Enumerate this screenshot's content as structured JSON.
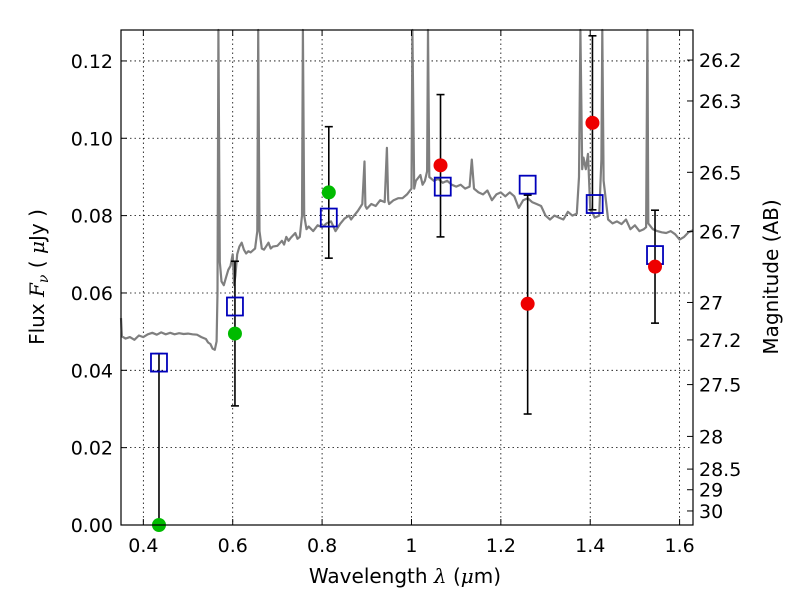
{
  "chart_data": {
    "type": "scatter",
    "xlabel": {
      "prefix": "Wavelength ",
      "symbol": "λ",
      "unit_open": " (",
      "unit_sym": "μ",
      "unit_rest": "m)"
    },
    "ylabel": {
      "prefix": "Flux ",
      "symbol": "F",
      "subscript": "ν",
      "unit_open": " ( ",
      "unit_sym": "μ",
      "unit_rest": "Jy )"
    },
    "y2label": "Magnitude (AB)",
    "xlim": [
      0.35,
      1.63
    ],
    "ylim": [
      0.0,
      0.128
    ],
    "grid": true,
    "x_ticks": [
      {
        "v": 0.4,
        "label": "0.4"
      },
      {
        "v": 0.6,
        "label": "0.6"
      },
      {
        "v": 0.8,
        "label": "0.8"
      },
      {
        "v": 1.0,
        "label": "1"
      },
      {
        "v": 1.2,
        "label": "1.2"
      },
      {
        "v": 1.4,
        "label": "1.4"
      },
      {
        "v": 1.6,
        "label": "1.6"
      }
    ],
    "y_ticks": [
      {
        "v": 0.0,
        "label": "0.00"
      },
      {
        "v": 0.02,
        "label": "0.02"
      },
      {
        "v": 0.04,
        "label": "0.04"
      },
      {
        "v": 0.06,
        "label": "0.06"
      },
      {
        "v": 0.08,
        "label": "0.08"
      },
      {
        "v": 0.1,
        "label": "0.10"
      },
      {
        "v": 0.12,
        "label": "0.12"
      }
    ],
    "mag_ticks": [
      {
        "mag": 26.2,
        "label": "26.2"
      },
      {
        "mag": 26.3,
        "label": "26.3"
      },
      {
        "mag": 26.5,
        "label": "26.5"
      },
      {
        "mag": 26.7,
        "label": "26.7"
      },
      {
        "mag": 27.0,
        "label": "27"
      },
      {
        "mag": 27.2,
        "label": "27.2"
      },
      {
        "mag": 27.5,
        "label": "27.5"
      },
      {
        "mag": 28.0,
        "label": "28"
      },
      {
        "mag": 28.5,
        "label": "28.5"
      },
      {
        "mag": 29.0,
        "label": "29"
      },
      {
        "mag": 30.0,
        "label": "30"
      }
    ],
    "series": [
      {
        "role": "model-spectrum",
        "color": "#7f7f7f",
        "points": [
          [
            0.35,
            0.0535
          ],
          [
            0.352,
            0.0488
          ],
          [
            0.36,
            0.0482
          ],
          [
            0.37,
            0.0486
          ],
          [
            0.38,
            0.0479
          ],
          [
            0.39,
            0.049
          ],
          [
            0.4,
            0.0486
          ],
          [
            0.41,
            0.0493
          ],
          [
            0.42,
            0.0497
          ],
          [
            0.43,
            0.0492
          ],
          [
            0.44,
            0.0498
          ],
          [
            0.45,
            0.0493
          ],
          [
            0.46,
            0.0497
          ],
          [
            0.47,
            0.0493
          ],
          [
            0.48,
            0.0496
          ],
          [
            0.49,
            0.0494
          ],
          [
            0.5,
            0.0495
          ],
          [
            0.51,
            0.0493
          ],
          [
            0.52,
            0.0492
          ],
          [
            0.53,
            0.0486
          ],
          [
            0.54,
            0.0481
          ],
          [
            0.545,
            0.0472
          ],
          [
            0.55,
            0.0468
          ],
          [
            0.555,
            0.0456
          ],
          [
            0.56,
            0.0453
          ],
          [
            0.564,
            0.0475
          ],
          [
            0.566,
            0.06
          ],
          [
            0.568,
            0.129
          ],
          [
            0.571,
            0.068
          ],
          [
            0.575,
            0.063
          ],
          [
            0.58,
            0.062
          ],
          [
            0.585,
            0.064
          ],
          [
            0.59,
            0.066
          ],
          [
            0.595,
            0.067
          ],
          [
            0.6,
            0.07
          ],
          [
            0.603,
            0.062
          ],
          [
            0.606,
            0.0645
          ],
          [
            0.61,
            0.07
          ],
          [
            0.615,
            0.072
          ],
          [
            0.62,
            0.073
          ],
          [
            0.625,
            0.0712
          ],
          [
            0.63,
            0.0702
          ],
          [
            0.635,
            0.0708
          ],
          [
            0.64,
            0.0705
          ],
          [
            0.65,
            0.0715
          ],
          [
            0.655,
            0.076
          ],
          [
            0.657,
            0.129
          ],
          [
            0.66,
            0.076
          ],
          [
            0.665,
            0.0715
          ],
          [
            0.67,
            0.0712
          ],
          [
            0.68,
            0.073
          ],
          [
            0.685,
            0.0715
          ],
          [
            0.69,
            0.072
          ],
          [
            0.7,
            0.0722
          ],
          [
            0.71,
            0.0735
          ],
          [
            0.715,
            0.0725
          ],
          [
            0.72,
            0.0745
          ],
          [
            0.725,
            0.0735
          ],
          [
            0.73,
            0.0743
          ],
          [
            0.74,
            0.0755
          ],
          [
            0.745,
            0.074
          ],
          [
            0.75,
            0.0745
          ],
          [
            0.755,
            0.08
          ],
          [
            0.757,
            0.129
          ],
          [
            0.76,
            0.08
          ],
          [
            0.765,
            0.0765
          ],
          [
            0.77,
            0.0772
          ],
          [
            0.78,
            0.076
          ],
          [
            0.79,
            0.0775
          ],
          [
            0.8,
            0.077
          ],
          [
            0.81,
            0.078
          ],
          [
            0.82,
            0.0785
          ],
          [
            0.83,
            0.076
          ],
          [
            0.84,
            0.0778
          ],
          [
            0.85,
            0.0792
          ],
          [
            0.86,
            0.08
          ],
          [
            0.865,
            0.079
          ],
          [
            0.87,
            0.0798
          ],
          [
            0.88,
            0.0812
          ],
          [
            0.89,
            0.083
          ],
          [
            0.895,
            0.094
          ],
          [
            0.897,
            0.0825
          ],
          [
            0.9,
            0.0818
          ],
          [
            0.91,
            0.083
          ],
          [
            0.92,
            0.0825
          ],
          [
            0.93,
            0.084
          ],
          [
            0.94,
            0.0835
          ],
          [
            0.945,
            0.0975
          ],
          [
            0.948,
            0.084
          ],
          [
            0.95,
            0.083
          ],
          [
            0.96,
            0.084
          ],
          [
            0.97,
            0.0845
          ],
          [
            0.98,
            0.0845
          ],
          [
            0.99,
            0.0855
          ],
          [
            1.0,
            0.087
          ],
          [
            1.002,
            0.129
          ],
          [
            1.006,
            0.087
          ],
          [
            1.01,
            0.089
          ],
          [
            1.02,
            0.0905
          ],
          [
            1.025,
            0.088
          ],
          [
            1.03,
            0.089
          ],
          [
            1.035,
            0.0915
          ],
          [
            1.037,
            0.129
          ],
          [
            1.04,
            0.09
          ],
          [
            1.05,
            0.089
          ],
          [
            1.06,
            0.0895
          ],
          [
            1.07,
            0.0885
          ],
          [
            1.08,
            0.089
          ],
          [
            1.09,
            0.088
          ],
          [
            1.1,
            0.0875
          ],
          [
            1.11,
            0.088
          ],
          [
            1.12,
            0.087
          ],
          [
            1.13,
            0.0875
          ],
          [
            1.135,
            0.0945
          ],
          [
            1.14,
            0.087
          ],
          [
            1.15,
            0.086
          ],
          [
            1.16,
            0.0855
          ],
          [
            1.17,
            0.0865
          ],
          [
            1.18,
            0.084
          ],
          [
            1.19,
            0.0855
          ],
          [
            1.2,
            0.086
          ],
          [
            1.21,
            0.085
          ],
          [
            1.22,
            0.086
          ],
          [
            1.23,
            0.085
          ],
          [
            1.24,
            0.082
          ],
          [
            1.25,
            0.084
          ],
          [
            1.26,
            0.0845
          ],
          [
            1.27,
            0.0835
          ],
          [
            1.28,
            0.083
          ],
          [
            1.29,
            0.0825
          ],
          [
            1.3,
            0.08
          ],
          [
            1.31,
            0.079
          ],
          [
            1.32,
            0.08
          ],
          [
            1.33,
            0.0795
          ],
          [
            1.34,
            0.079
          ],
          [
            1.35,
            0.081
          ],
          [
            1.36,
            0.08
          ],
          [
            1.37,
            0.0805
          ],
          [
            1.375,
            0.09
          ],
          [
            1.378,
            0.129
          ],
          [
            1.382,
            0.092
          ],
          [
            1.385,
            0.095
          ],
          [
            1.39,
            0.092
          ],
          [
            1.395,
            0.096
          ],
          [
            1.4,
            0.082
          ],
          [
            1.41,
            0.0795
          ],
          [
            1.42,
            0.08
          ],
          [
            1.425,
            0.0945
          ],
          [
            1.427,
            0.129
          ],
          [
            1.43,
            0.089
          ],
          [
            1.44,
            0.079
          ],
          [
            1.45,
            0.078
          ],
          [
            1.46,
            0.0785
          ],
          [
            1.47,
            0.0778
          ],
          [
            1.48,
            0.079
          ],
          [
            1.49,
            0.0765
          ],
          [
            1.5,
            0.0775
          ],
          [
            1.51,
            0.076
          ],
          [
            1.52,
            0.0765
          ],
          [
            1.525,
            0.077
          ],
          [
            1.528,
            0.129
          ],
          [
            1.53,
            0.078
          ],
          [
            1.54,
            0.0765
          ],
          [
            1.55,
            0.076
          ],
          [
            1.56,
            0.0757
          ],
          [
            1.57,
            0.0755
          ],
          [
            1.58,
            0.076
          ],
          [
            1.59,
            0.0752
          ],
          [
            1.6,
            0.0738
          ],
          [
            1.61,
            0.0745
          ],
          [
            1.62,
            0.0757
          ],
          [
            1.63,
            0.0762
          ]
        ]
      },
      {
        "role": "synthetic-photometry",
        "marker": "open-square",
        "color": "#0000bb",
        "x": [
          0.435,
          0.605,
          0.815,
          1.07,
          1.26,
          1.41,
          1.545
        ],
        "y": [
          0.042,
          0.0565,
          0.0795,
          0.0875,
          0.088,
          0.083,
          0.0698
        ]
      },
      {
        "role": "observed-optical",
        "marker": "filled-circle",
        "color": "#00bb00",
        "x": [
          0.435,
          0.605,
          0.815
        ],
        "y": [
          0.0,
          0.0495,
          0.086
        ],
        "err_low": [
          0.0,
          0.0308,
          0.069
        ],
        "err_high": [
          0.0443,
          0.0682,
          0.103
        ]
      },
      {
        "role": "observed-infrared",
        "marker": "filled-circle",
        "color": "#ee0000",
        "x": [
          1.065,
          1.26,
          1.405,
          1.545
        ],
        "y": [
          0.093,
          0.0572,
          0.104,
          0.0668
        ],
        "err_low": [
          0.0745,
          0.0287,
          0.0815,
          0.0522
        ],
        "err_high": [
          0.1113,
          0.0853,
          0.1265,
          0.0814
        ]
      }
    ]
  }
}
